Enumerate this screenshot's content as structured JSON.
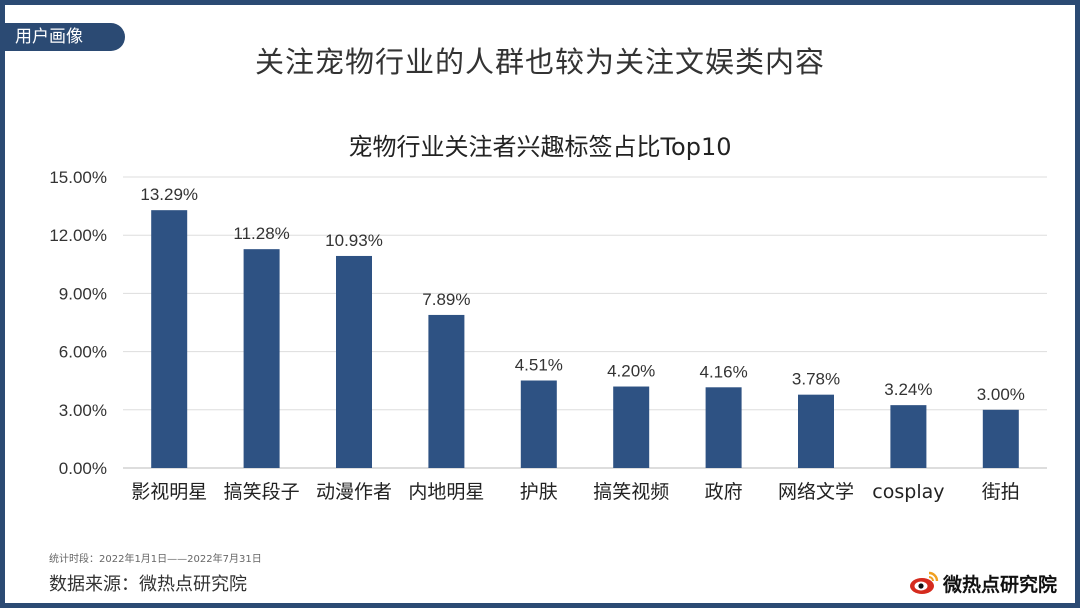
{
  "tag": "用户画像",
  "headline": "关注宠物行业的人群也较为关注文娱类内容",
  "footer": {
    "period": "统计时段：2022年1月1日——2022年7月31日",
    "source": "数据来源：微热点研究院",
    "logo_text": "微热点研究院",
    "logo_icon": "weibo-eye-icon"
  },
  "colors": {
    "bar": "#2e5283",
    "frame": "#2b4a73",
    "grid": "#dddddd"
  },
  "chart_data": {
    "type": "bar",
    "title": "宠物行业关注者兴趣标签占比Top10",
    "categories": [
      "影视明星",
      "搞笑段子",
      "动漫作者",
      "内地明星",
      "护肤",
      "搞笑视频",
      "政府",
      "网络文学",
      "cosplay",
      "街拍"
    ],
    "values": [
      13.29,
      11.28,
      10.93,
      7.89,
      4.51,
      4.2,
      4.16,
      3.78,
      3.24,
      3.0
    ],
    "value_labels": [
      "13.29%",
      "11.28%",
      "10.93%",
      "7.89%",
      "4.51%",
      "4.20%",
      "4.16%",
      "3.78%",
      "3.24%",
      "3.00%"
    ],
    "ylim": [
      0,
      15
    ],
    "yticks": [
      0,
      3,
      6,
      9,
      12,
      15
    ],
    "ytick_labels": [
      "0.00%",
      "3.00%",
      "6.00%",
      "9.00%",
      "12.00%",
      "15.00%"
    ],
    "xlabel": "",
    "ylabel": "",
    "grid": true,
    "legend": "none"
  }
}
